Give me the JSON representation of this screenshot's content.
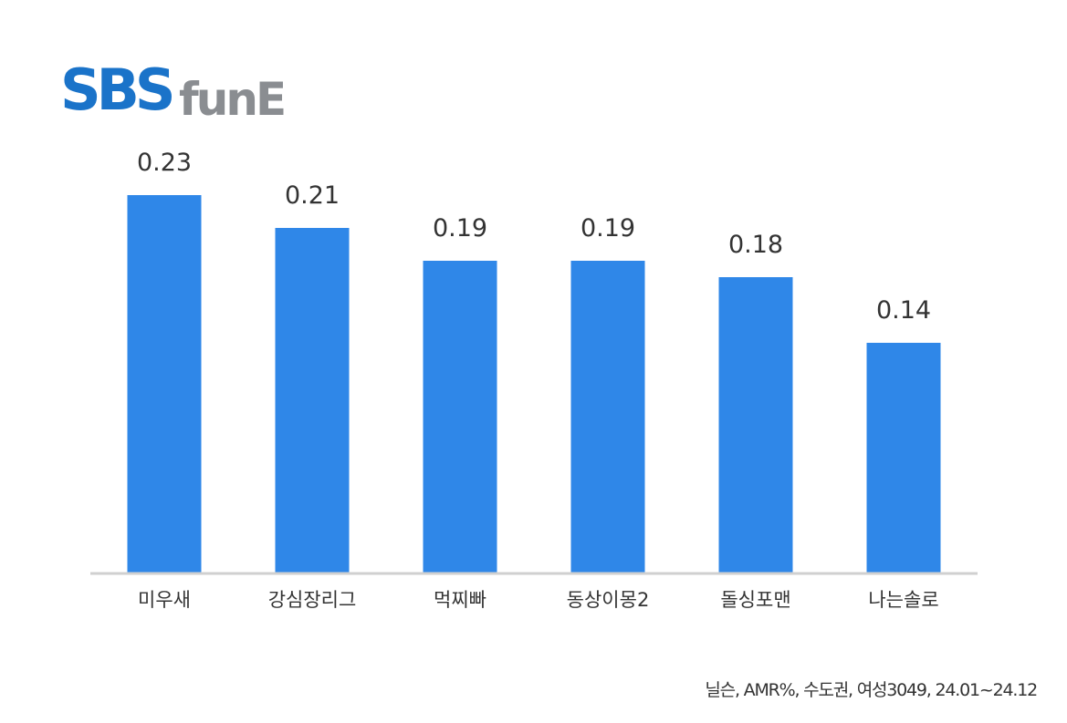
{
  "logo": {
    "brand": "SBS",
    "sub": "funE",
    "brand_color": "#1a73c9",
    "sub_color": "#8a8d91"
  },
  "chart_data": {
    "type": "bar",
    "categories": [
      "미우새",
      "강심장리그",
      "먹찌빠",
      "동상이몽2",
      "돌싱포맨",
      "나는솔로"
    ],
    "values": [
      0.23,
      0.21,
      0.19,
      0.19,
      0.18,
      0.14
    ],
    "data_labels": [
      "0.23",
      "0.21",
      "0.19",
      "0.19",
      "0.18",
      "0.14"
    ],
    "title": "",
    "xlabel": "",
    "ylabel": "",
    "ylim": [
      0,
      0.23
    ],
    "grid": false,
    "legend": "none",
    "bar_color": "#2f87e8",
    "axis_color": "#d0d0d0"
  },
  "footnote": "닐슨, AMR%, 수도권, 여성3049, 24.01~24.12"
}
